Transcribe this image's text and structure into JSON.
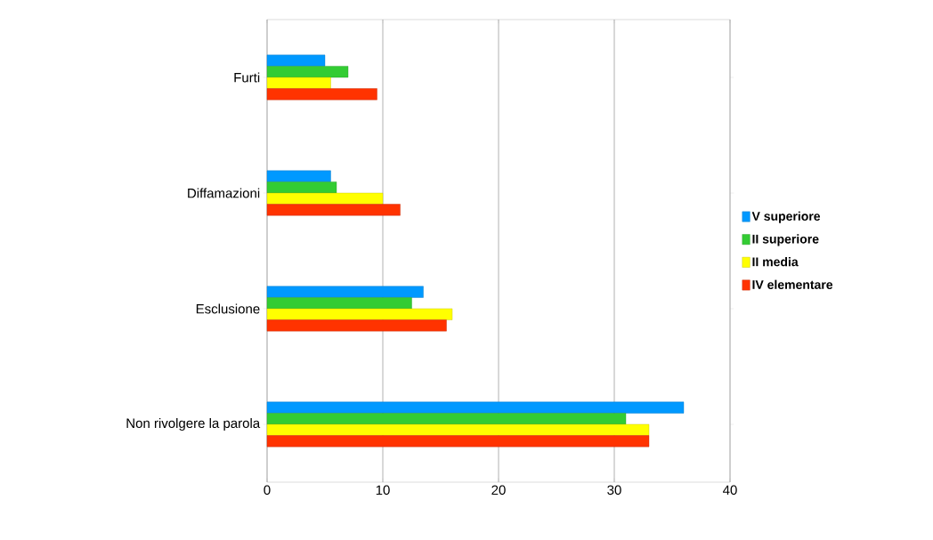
{
  "chart_data": {
    "type": "bar",
    "orientation": "horizontal",
    "categories": [
      "Furti",
      "Diffamazioni",
      "Esclusione",
      "Non rivolgere la parola"
    ],
    "series": [
      {
        "name": "V superiore",
        "color": "#0099ff",
        "values": [
          5,
          5.5,
          13.5,
          36
        ]
      },
      {
        "name": "II superiore",
        "color": "#33cc33",
        "values": [
          7,
          6,
          12.5,
          31
        ]
      },
      {
        "name": "II media",
        "color": "#ffff00",
        "values": [
          5.5,
          10,
          16,
          33
        ]
      },
      {
        "name": "IV elementare",
        "color": "#ff3300",
        "values": [
          9.5,
          11.5,
          15.5,
          33
        ]
      }
    ],
    "xlim": [
      0,
      40
    ],
    "xticks": [
      0,
      10,
      20,
      30,
      40
    ],
    "grid": "x",
    "legend": "right"
  }
}
